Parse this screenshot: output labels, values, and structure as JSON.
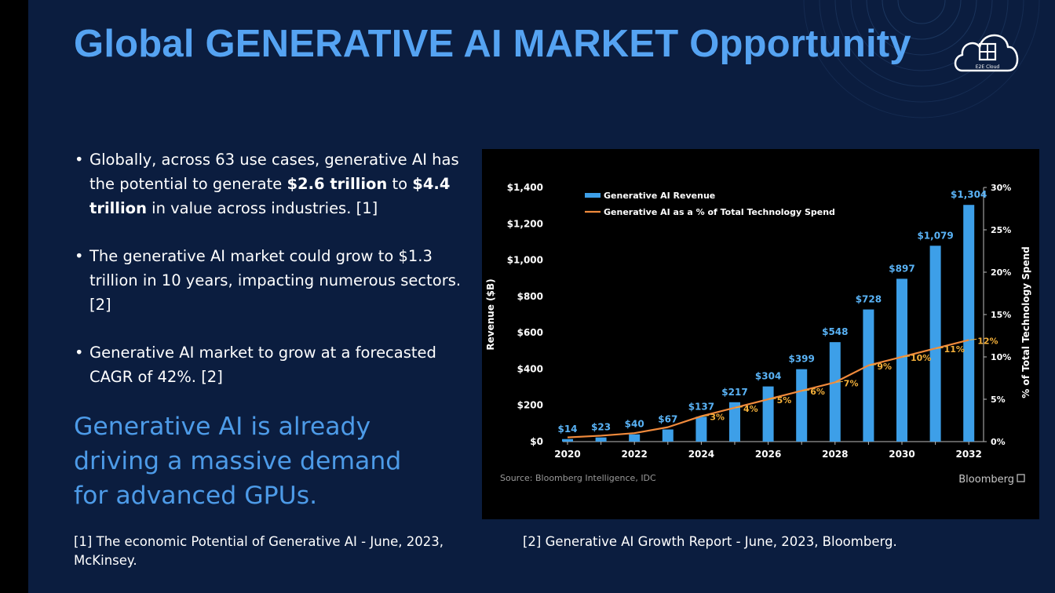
{
  "slide": {
    "title": "Global GENERATIVE AI MARKET Opportunity",
    "logo_text": "E2E Cloud",
    "bullets": [
      {
        "pre": "Globally, across 63 use cases, generative AI has the potential to generate ",
        "bold1": "$2.6 trillion",
        "mid": " to ",
        "bold2": "$4.4 trillion",
        "post": " in value across industries. [1]"
      },
      {
        "pre": "The generative AI market could grow to $1.3 trillion in 10 years, impacting numerous sectors. [2]"
      },
      {
        "pre": "Generative AI market to grow at a forecasted CAGR of 42%. [2]"
      }
    ],
    "bullet_symbol": "•",
    "tagline": "Generative AI is already driving a massive demand for advanced GPUs.",
    "ref1": "[1] The economic Potential of Generative AI - June, 2023, McKinsey.",
    "ref2": "[2] Generative AI Growth Report - June, 2023, Bloomberg.",
    "colors": {
      "background": "#0b1d3f",
      "title": "#55a3f2",
      "tagline": "#4d9be8",
      "bar": "#3d9fe8",
      "line": "#f08a3c",
      "bar_label": "#59b2f5",
      "pct_label": "#f4b03a"
    }
  },
  "chart_data": {
    "type": "bar",
    "x": [
      2020,
      2021,
      2022,
      2023,
      2024,
      2025,
      2026,
      2027,
      2028,
      2029,
      2030,
      2031,
      2032
    ],
    "series": [
      {
        "name": "Generative AI Revenue",
        "type": "bar",
        "axis": "left",
        "values": [
          14,
          23,
          40,
          67,
          137,
          217,
          304,
          399,
          548,
          728,
          897,
          1079,
          1304
        ]
      },
      {
        "name": "Generative AI as a % of Total Technology Spend",
        "type": "line",
        "axis": "right",
        "values": [
          0.5,
          0.7,
          1,
          1.7,
          3,
          4,
          5,
          6,
          7,
          9,
          10,
          11,
          12
        ]
      }
    ],
    "bar_labels": [
      "$14",
      "$23",
      "$40",
      "$67",
      "$137",
      "$217",
      "$304",
      "$399",
      "$548",
      "$728",
      "$897",
      "$1,079",
      "$1,304"
    ],
    "pct_labels": [
      {
        "x": 2024,
        "label": "3%"
      },
      {
        "x": 2025,
        "label": "4%"
      },
      {
        "x": 2026,
        "label": "5%"
      },
      {
        "x": 2027,
        "label": "6%"
      },
      {
        "x": 2028,
        "label": "7%"
      },
      {
        "x": 2029,
        "label": "9%"
      },
      {
        "x": 2030,
        "label": "10%"
      },
      {
        "x": 2031,
        "label": "11%"
      },
      {
        "x": 2032,
        "label": "12%"
      }
    ],
    "x_ticks": [
      "2020",
      "2022",
      "2024",
      "2026",
      "2028",
      "2030",
      "2032"
    ],
    "y_ticks": [
      "$0",
      "$200",
      "$400",
      "$600",
      "$800",
      "$1,000",
      "$1,200",
      "$1,400"
    ],
    "y2_ticks": [
      "0%",
      "5%",
      "10%",
      "15%",
      "20%",
      "25%",
      "30%"
    ],
    "ylim": [
      0,
      1400
    ],
    "y2lim": [
      0,
      30
    ],
    "ylabel": "Revenue ($B)",
    "y2label": "% of Total Technology Spend",
    "legend_placement": "top-left",
    "grid": false,
    "source": "Source: Bloomberg Intelligence, IDC",
    "brand": "Bloomberg"
  }
}
